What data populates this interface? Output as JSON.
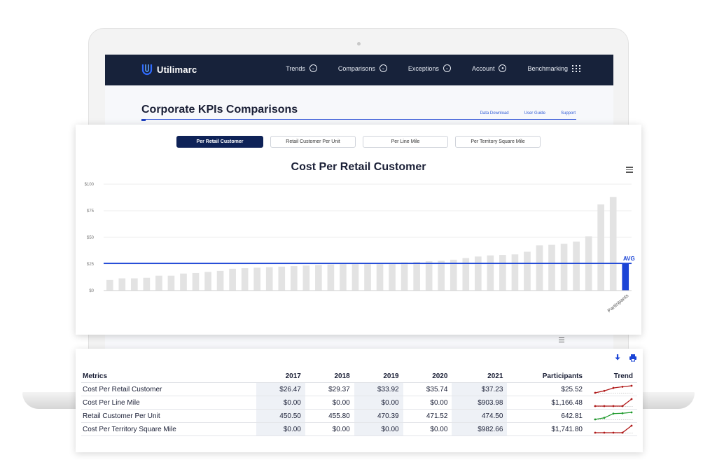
{
  "app": {
    "brand": "Utilimarc",
    "nav": [
      {
        "label": "Trends",
        "icon": "chevron-down-circle-icon"
      },
      {
        "label": "Comparisons",
        "icon": "chevron-down-circle-icon"
      },
      {
        "label": "Exceptions",
        "icon": "chevron-down-circle-icon"
      },
      {
        "label": "Account",
        "icon": "user-circle-icon"
      },
      {
        "label": "Benchmarking",
        "icon": "grid-dots-icon"
      }
    ],
    "page_title": "Corporate KPIs Comparisons",
    "links": [
      "Data Download",
      "User Guide",
      "Support"
    ]
  },
  "tabs": [
    {
      "label": "Per Retail Customer",
      "active": true
    },
    {
      "label": "Retail Customer Per Unit",
      "active": false
    },
    {
      "label": "Per Line Mile",
      "active": false
    },
    {
      "label": "Per Territory Square Mile",
      "active": false
    }
  ],
  "colors": {
    "navbar": "#17223a",
    "active_tab": "#0e2257",
    "bar": "#e3e3e3",
    "highlight_bar": "#1b44d6",
    "avg_line": "#1b44d6",
    "trend_red": "#b01818",
    "trend_green": "#1f9a2c"
  },
  "chart_data": {
    "type": "bar",
    "title": "Cost Per Retail Customer",
    "ytick_labels": [
      "$0",
      "$25",
      "$50",
      "$75",
      "$100"
    ],
    "ylim": [
      0,
      100
    ],
    "grid": true,
    "avg_label": "AVG",
    "avg_value": 25.52,
    "xlabel": "Participants",
    "values": [
      10,
      11.5,
      11.5,
      12,
      14,
      14,
      16,
      16.5,
      17.5,
      18.5,
      20.5,
      21,
      21.5,
      22,
      22.5,
      23,
      23.5,
      24,
      24.5,
      25,
      25,
      25.5,
      26,
      26,
      26.5,
      27,
      27.5,
      28,
      29,
      30.5,
      32,
      33,
      33.5,
      34,
      36.5,
      42.5,
      43,
      44,
      46,
      51,
      81,
      88
    ],
    "highlight_index": 42,
    "highlight_value": 25.52
  },
  "table": {
    "columns": [
      "Metrics",
      "2017",
      "2018",
      "2019",
      "2020",
      "2021",
      "Participants",
      "Trend"
    ],
    "rows": [
      {
        "metric": "Cost Per Retail Customer",
        "values": [
          "$26.47",
          "$29.37",
          "$33.92",
          "$35.74",
          "$37.23",
          "$25.52"
        ],
        "trend": [
          26.47,
          29.37,
          33.92,
          35.74,
          37.23
        ],
        "trend_color": "red"
      },
      {
        "metric": "Cost Per Line Mile",
        "values": [
          "$0.00",
          "$0.00",
          "$0.00",
          "$0.00",
          "$903.98",
          "$1,166.48"
        ],
        "trend": [
          0,
          0,
          0,
          0,
          903.98
        ],
        "trend_color": "red"
      },
      {
        "metric": "Retail Customer Per Unit",
        "values": [
          "450.50",
          "455.80",
          "470.39",
          "471.52",
          "474.50",
          "642.81"
        ],
        "trend": [
          450.5,
          455.8,
          470.39,
          471.52,
          474.5
        ],
        "trend_color": "green"
      },
      {
        "metric": "Cost Per Territory Square Mile",
        "values": [
          "$0.00",
          "$0.00",
          "$0.00",
          "$0.00",
          "$982.66",
          "$1,741.80"
        ],
        "trend": [
          0,
          0,
          0,
          0,
          982.66
        ],
        "trend_color": "red"
      }
    ]
  },
  "icons": {
    "download": "download-arrow-icon",
    "print": "printer-icon",
    "chart_menu": "hamburger-menu-icon"
  }
}
